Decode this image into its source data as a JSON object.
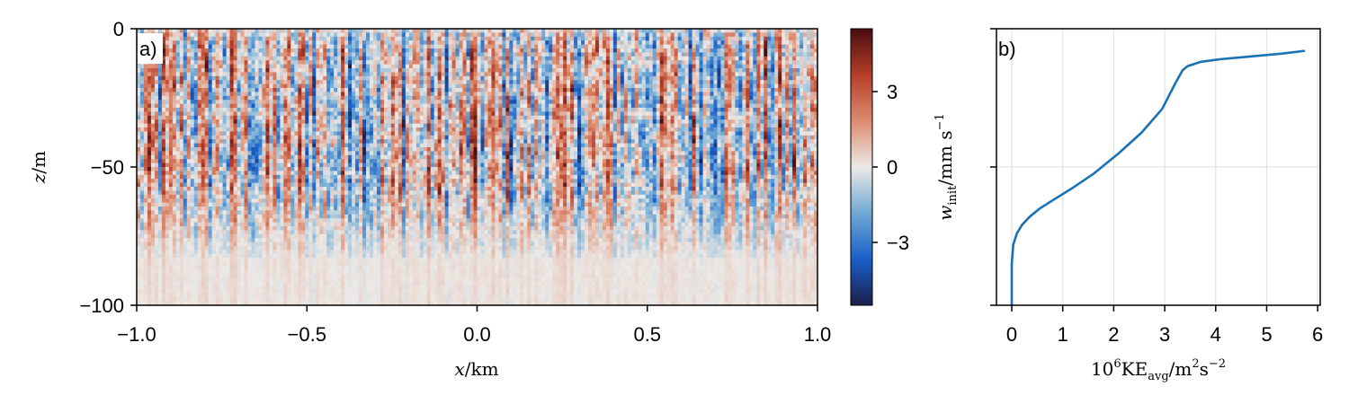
{
  "chart_data": [
    {
      "type": "heatmap",
      "panel_label": "a)",
      "xlabel": "x/km",
      "ylabel": "z/m",
      "xlim": [
        -1.0,
        1.0
      ],
      "ylim": [
        -100,
        0
      ],
      "x_ticks": [
        -1.0,
        -0.5,
        0.0,
        0.5,
        1.0
      ],
      "x_tick_labels": [
        "−1.0",
        "−0.5",
        "0.0",
        "0.5",
        "1.0"
      ],
      "y_ticks": [
        0,
        -50,
        -100
      ],
      "y_tick_labels": [
        "0",
        "−50",
        "−100"
      ],
      "field_description": "noisy vertical velocity field, strong in upper ~80 m, vanishing below",
      "colorbar": {
        "label": "w_init/mm s^-1",
        "range": [
          -5.5,
          5.5
        ],
        "ticks": [
          3,
          0,
          -3
        ],
        "tick_labels": [
          "3",
          "0",
          "−3"
        ],
        "colormap": [
          "#1b1f4a",
          "#1a5fc8",
          "#6fa9d4",
          "#ece9e6",
          "#dd8b6f",
          "#b53e2a",
          "#4a0d10"
        ]
      }
    },
    {
      "type": "line",
      "panel_label": "b)",
      "xlabel": "10^6 KE_avg/m^2 s^-2",
      "xlim": [
        -0.3,
        6.05
      ],
      "ylim": [
        -100,
        0
      ],
      "x_ticks": [
        0,
        1,
        2,
        3,
        4,
        5,
        6
      ],
      "x_tick_labels": [
        "0",
        "1",
        "2",
        "3",
        "4",
        "5",
        "6"
      ],
      "y_ticks": [
        0,
        -50,
        -100
      ],
      "grid": true,
      "series": [
        {
          "color": "#1a72b6",
          "x": [
            0.0,
            0.0,
            0.03,
            0.1,
            0.2,
            0.35,
            0.55,
            0.85,
            1.2,
            1.6,
            2.1,
            2.55,
            2.95,
            3.2,
            3.35,
            3.45,
            3.7,
            4.1,
            4.7,
            5.3,
            5.75
          ],
          "y": [
            -100,
            -85,
            -78,
            -74,
            -71,
            -68,
            -65,
            -61.5,
            -57.5,
            -52.5,
            -45,
            -37.5,
            -29,
            -20,
            -15,
            -13.5,
            -12,
            -11,
            -10,
            -9,
            -8
          ]
        }
      ]
    }
  ]
}
